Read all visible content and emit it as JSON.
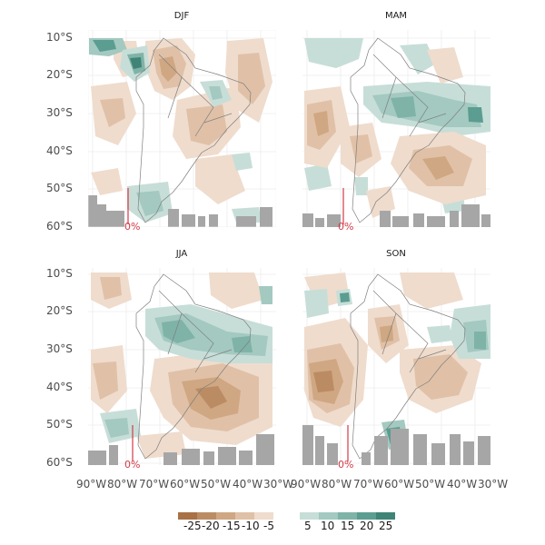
{
  "panels": [
    {
      "title": "DJF",
      "gauge_label": "0%"
    },
    {
      "title": "MAM",
      "gauge_label": "0%"
    },
    {
      "title": "JJA",
      "gauge_label": "0%"
    },
    {
      "title": "SON",
      "gauge_label": "0%"
    }
  ],
  "axes": {
    "lat_ticks": [
      "10°S",
      "20°S",
      "30°S",
      "40°S",
      "50°S",
      "60°S"
    ],
    "lon_ticks": [
      "90°W",
      "80°W",
      "70°W",
      "60°W",
      "50°W",
      "40°W",
      "30°W"
    ]
  },
  "legend": {
    "negative": {
      "labels": [
        "-25",
        "-20",
        "-15",
        "-10",
        "-5"
      ],
      "colors": [
        "#a87146",
        "#bb8c63",
        "#cfa782",
        "#e0c1a7",
        "#efdccd"
      ]
    },
    "positive": {
      "labels": [
        "5",
        "10",
        "15",
        "20",
        "25"
      ],
      "colors": [
        "#c7ded8",
        "#a3c9c0",
        "#7fb3a8",
        "#5b9d90",
        "#3f8476"
      ]
    }
  },
  "colors": {
    "land_outline": "#7f7f7f",
    "grid": "#ebebeb",
    "masked": "#a6a6a6",
    "gauge": "#d43a47"
  }
}
